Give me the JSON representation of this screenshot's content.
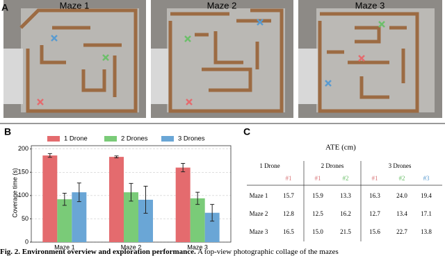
{
  "panel_labels": [
    "A",
    "B",
    "C"
  ],
  "maze_titles": [
    "Maze 1",
    "Maze 2",
    "Maze 3"
  ],
  "chart_data": {
    "type": "bar",
    "y_label": "Coverage time (s)",
    "categories": [
      "Maze 1",
      "Maze 2",
      "Maze 3"
    ],
    "series": [
      {
        "name": "1 Drone",
        "color": "#e46b6e",
        "values": [
          186,
          183,
          160
        ],
        "errors": [
          4,
          2,
          9
        ]
      },
      {
        "name": "2 Drones",
        "color": "#7acb78",
        "values": [
          92,
          107,
          94
        ],
        "errors": [
          13,
          19,
          13
        ]
      },
      {
        "name": "3 Drones",
        "color": "#6aa6d6",
        "values": [
          107,
          91,
          63
        ],
        "errors": [
          20,
          29,
          18
        ]
      }
    ],
    "ylim": [
      0,
      207
    ],
    "yticks": [
      0,
      50,
      100,
      150,
      200
    ],
    "grid": true
  },
  "table": {
    "title": "ATE (cm)",
    "groups": [
      "1 Drone",
      "2 Drones",
      "3 Drones"
    ],
    "subheaders": [
      "#1",
      "#1",
      "#2",
      "#1",
      "#2",
      "#3"
    ],
    "subheader_colors": [
      "#d9777a",
      "#d9777a",
      "#6cbf6a",
      "#d9777a",
      "#6cbf6a",
      "#5a9bd0"
    ],
    "rows": [
      [
        "Maze 1",
        "15.7",
        "15.9",
        "13.3",
        "16.3",
        "24.0",
        "19.4"
      ],
      [
        "Maze 2",
        "12.8",
        "12.5",
        "16.2",
        "12.7",
        "13.4",
        "17.1"
      ],
      [
        "Maze 3",
        "16.5",
        "15.0",
        "21.5",
        "15.6",
        "22.7",
        "13.8"
      ]
    ]
  },
  "caption": {
    "bold": "Fig. 2. Environment overview and exploration performance.",
    "text": " A top-view photographic collage of the mazes"
  }
}
